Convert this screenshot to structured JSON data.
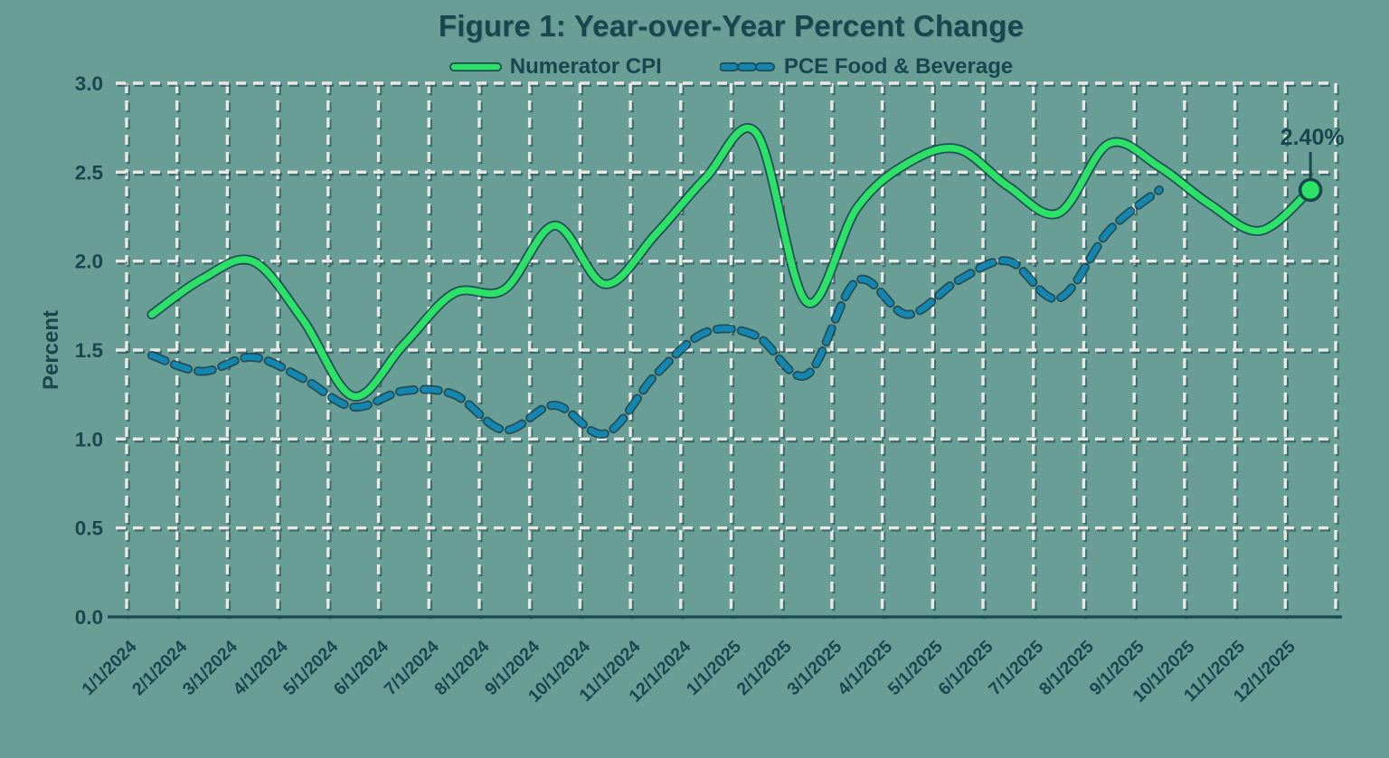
{
  "title": "Figure 1: Year-over-Year Percent Change",
  "y_axis": {
    "label": "Percent",
    "ticks": [
      "3.0",
      "2.5",
      "2.0",
      "1.5",
      "1.0",
      "0.5",
      "0.0"
    ]
  },
  "legend": [
    {
      "label": "Numerator CPI",
      "style": "solid"
    },
    {
      "label": "PCE Food & Beverage",
      "style": "dashed"
    }
  ],
  "annotation": {
    "label": "2.40%"
  },
  "colors": {
    "background": "#699E97",
    "text_dark": "#17484E",
    "numerator_cpi_green": "#2CE266",
    "pce_blue": "#1386B1",
    "gridline_white": "#EAE8E4",
    "line_outline_dark": "#123C46",
    "axis_line": "#1A4A50"
  },
  "chart_data": {
    "type": "line",
    "x": [
      "1/1/2024",
      "2/1/2024",
      "3/1/2024",
      "4/1/2024",
      "5/1/2024",
      "6/1/2024",
      "7/1/2024",
      "8/1/2024",
      "9/1/2024",
      "10/1/2024",
      "11/1/2024",
      "12/1/2024",
      "1/1/2025",
      "2/1/2025",
      "3/1/2025",
      "4/1/2025",
      "5/1/2025",
      "6/1/2025",
      "7/1/2025",
      "8/1/2025",
      "9/1/2025",
      "10/1/2025",
      "11/1/2025",
      "12/1/2025"
    ],
    "series": [
      {
        "name": "Numerator CPI",
        "values": [
          1.7,
          1.9,
          2.0,
          1.67,
          1.24,
          1.53,
          1.82,
          1.84,
          2.2,
          1.87,
          2.15,
          2.47,
          2.72,
          1.77,
          2.3,
          2.55,
          2.63,
          2.42,
          2.27,
          2.66,
          2.53,
          2.32,
          2.17,
          2.4
        ]
      },
      {
        "name": "PCE Food & Beverage",
        "values": [
          1.47,
          1.38,
          1.46,
          1.34,
          1.18,
          1.27,
          1.25,
          1.05,
          1.19,
          1.03,
          1.36,
          1.6,
          1.58,
          1.36,
          1.89,
          1.7,
          1.89,
          2.0,
          1.79,
          2.17,
          2.4
        ]
      }
    ],
    "title": "Figure 1: Year-over-Year Percent Change",
    "xlabel": "",
    "ylabel": "Percent",
    "ylim": [
      0,
      3
    ],
    "grid": true,
    "legend_position": "top",
    "annotation_last_point": "2.40%"
  }
}
